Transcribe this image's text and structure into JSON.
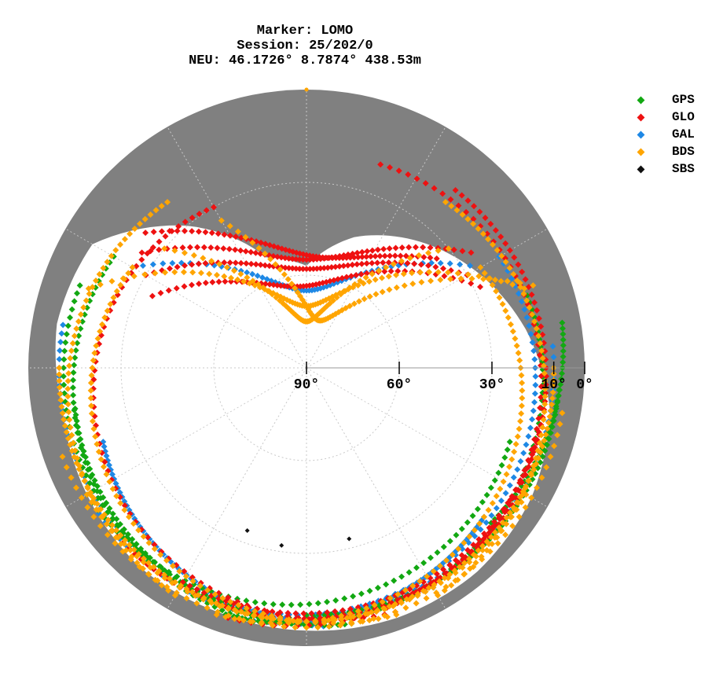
{
  "title": {
    "line1": "Marker: LOMO",
    "line2": "Session: 25/202/0",
    "line3": "NEU: 46.1726° 8.7874° 438.53m"
  },
  "legend": [
    {
      "name": "GPS",
      "color": "#12a812"
    },
    {
      "name": "GLO",
      "color": "#ee1111"
    },
    {
      "name": "GAL",
      "color": "#1e88e5"
    },
    {
      "name": "BDS",
      "color": "#ffa500"
    },
    {
      "name": "SBS",
      "color": "#111111"
    }
  ],
  "chart_data": {
    "type": "scatter",
    "projection": "polar-skyplot",
    "radial_axis": "elevation",
    "elevation_ticks": [
      {
        "value": 90,
        "label": "90°"
      },
      {
        "value": 60,
        "label": "60°"
      },
      {
        "value": 30,
        "label": "30°"
      },
      {
        "value": 10,
        "label": "10°"
      },
      {
        "value": 0,
        "label": "0°"
      }
    ],
    "azimuth_range": [
      0,
      360
    ],
    "elevation_range": [
      0,
      90
    ],
    "grid": true,
    "legend_position": "top-right",
    "obstruction_mask_color": "#808080",
    "series": [
      {
        "name": "GPS",
        "color": "#12a812"
      },
      {
        "name": "GLO",
        "color": "#ee1111"
      },
      {
        "name": "GAL",
        "color": "#1e88e5"
      },
      {
        "name": "BDS",
        "color": "#ffa500"
      },
      {
        "name": "SBS",
        "color": "#111111"
      }
    ],
    "mask": {
      "description": "grey sector shows terrain obstruction; elevation of horizon mask by azimuth",
      "az": [
        0,
        20,
        40,
        60,
        80,
        100,
        120,
        140,
        160,
        180,
        200,
        220,
        240,
        260,
        280,
        300,
        320,
        340,
        360
      ],
      "el": [
        57,
        45,
        36,
        27,
        18,
        10,
        6,
        4,
        4,
        5,
        6,
        6,
        8,
        10,
        8,
        10,
        30,
        52,
        57
      ]
    },
    "tracks": [
      {
        "sys": "GLO",
        "az1": 300,
        "el1": 30,
        "az2": 60,
        "el2": 30,
        "sag": 28,
        "n": 60
      },
      {
        "sys": "GLO",
        "az1": 305,
        "el1": 25,
        "az2": 55,
        "el2": 25,
        "sag": 30,
        "n": 60
      },
      {
        "sys": "GLO",
        "az1": 310,
        "el1": 22,
        "az2": 50,
        "el2": 35,
        "sag": 25,
        "n": 60
      },
      {
        "sys": "GLO",
        "az1": 295,
        "el1": 35,
        "az2": 65,
        "el2": 28,
        "sag": 32,
        "n": 60
      },
      {
        "sys": "GLO",
        "az1": 20,
        "el1": 20,
        "az2": 200,
        "el2": 5,
        "sag": 0,
        "n": 70
      },
      {
        "sys": "GLO",
        "az1": 40,
        "el1": 15,
        "az2": 180,
        "el2": 8,
        "sag": 0,
        "n": 70
      },
      {
        "sys": "GLO",
        "az1": 100,
        "el1": 12,
        "az2": 210,
        "el2": 10,
        "sag": 0,
        "n": 60
      },
      {
        "sys": "GLO",
        "az1": 330,
        "el1": 30,
        "az2": 160,
        "el2": 6,
        "sag": 0,
        "n": 70
      },
      {
        "sys": "GLO",
        "az1": 120,
        "el1": 10,
        "az2": 230,
        "el2": 8,
        "sag": 0,
        "n": 60
      },
      {
        "sys": "GPS",
        "az1": 290,
        "el1": 12,
        "az2": 150,
        "el2": 8,
        "sag": 0,
        "n": 70
      },
      {
        "sys": "GPS",
        "az1": 70,
        "el1": 15,
        "az2": 200,
        "el2": 6,
        "sag": 0,
        "n": 70
      },
      {
        "sys": "GPS",
        "az1": 95,
        "el1": 8,
        "az2": 180,
        "el2": 10,
        "sag": 0,
        "n": 60
      },
      {
        "sys": "GPS",
        "az1": 260,
        "el1": 14,
        "az2": 170,
        "el2": 6,
        "sag": 0,
        "n": 60
      },
      {
        "sys": "GPS",
        "az1": 110,
        "el1": 20,
        "az2": 240,
        "el2": 8,
        "sag": 0,
        "n": 60
      },
      {
        "sys": "GPS",
        "az1": 300,
        "el1": 18,
        "az2": 190,
        "el2": 6,
        "sag": 0,
        "n": 60
      },
      {
        "sys": "GPS",
        "az1": 80,
        "el1": 6,
        "az2": 130,
        "el2": 12,
        "sag": 0,
        "n": 40
      },
      {
        "sys": "GAL",
        "az1": 280,
        "el1": 10,
        "az2": 140,
        "el2": 10,
        "sag": 0,
        "n": 70
      },
      {
        "sys": "GAL",
        "az1": 60,
        "el1": 18,
        "az2": 210,
        "el2": 8,
        "sag": 0,
        "n": 70
      },
      {
        "sys": "GAL",
        "az1": 250,
        "el1": 20,
        "az2": 175,
        "el2": 6,
        "sag": 0,
        "n": 60
      },
      {
        "sys": "GAL",
        "az1": 130,
        "el1": 15,
        "az2": 195,
        "el2": 6,
        "sag": 0,
        "n": 60
      },
      {
        "sys": "GAL",
        "az1": 300,
        "el1": 25,
        "az2": 60,
        "el2": 25,
        "sag": 40,
        "n": 60
      },
      {
        "sys": "GAL",
        "az1": 85,
        "el1": 10,
        "az2": 235,
        "el2": 8,
        "sag": 0,
        "n": 60
      },
      {
        "sys": "BDS",
        "az1": 300,
        "el1": 25,
        "az2": 160,
        "el2": 5,
        "sag": 0,
        "n": 70
      },
      {
        "sys": "BDS",
        "az1": 60,
        "el1": 25,
        "az2": 200,
        "el2": 5,
        "sag": 0,
        "n": 70
      },
      {
        "sys": "BDS",
        "az1": 290,
        "el1": 15,
        "az2": 70,
        "el2": 15,
        "sag": 55,
        "n": 70
      },
      {
        "sys": "BDS",
        "az1": 310,
        "el1": 30,
        "az2": 50,
        "el2": 30,
        "sag": 45,
        "n": 60
      },
      {
        "sys": "BDS",
        "az1": 270,
        "el1": 10,
        "az2": 180,
        "el2": 8,
        "sag": 0,
        "n": 60
      },
      {
        "sys": "BDS",
        "az1": 90,
        "el1": 10,
        "az2": 175,
        "el2": 8,
        "sag": 0,
        "n": 60
      },
      {
        "sys": "BDS",
        "az1": 240,
        "el1": 8,
        "az2": 120,
        "el2": 8,
        "sag": 0,
        "n": 60
      },
      {
        "sys": "BDS",
        "az1": 320,
        "el1": 20,
        "az2": 210,
        "el2": 5,
        "sag": 0,
        "n": 60
      },
      {
        "sys": "BDS",
        "az1": 40,
        "el1": 20,
        "az2": 150,
        "el2": 5,
        "sag": 0,
        "n": 60
      },
      {
        "sys": "BDS",
        "az1": 330,
        "el1": 35,
        "az2": 70,
        "el2": 12,
        "sag": 50,
        "n": 60
      },
      {
        "sys": "BDS",
        "az1": 100,
        "el1": 6,
        "az2": 250,
        "el2": 6,
        "sag": 0,
        "n": 60
      }
    ],
    "sbs_points": [
      {
        "az": 200,
        "el": 34
      },
      {
        "az": 188,
        "el": 32
      },
      {
        "az": 166,
        "el": 33
      }
    ]
  }
}
